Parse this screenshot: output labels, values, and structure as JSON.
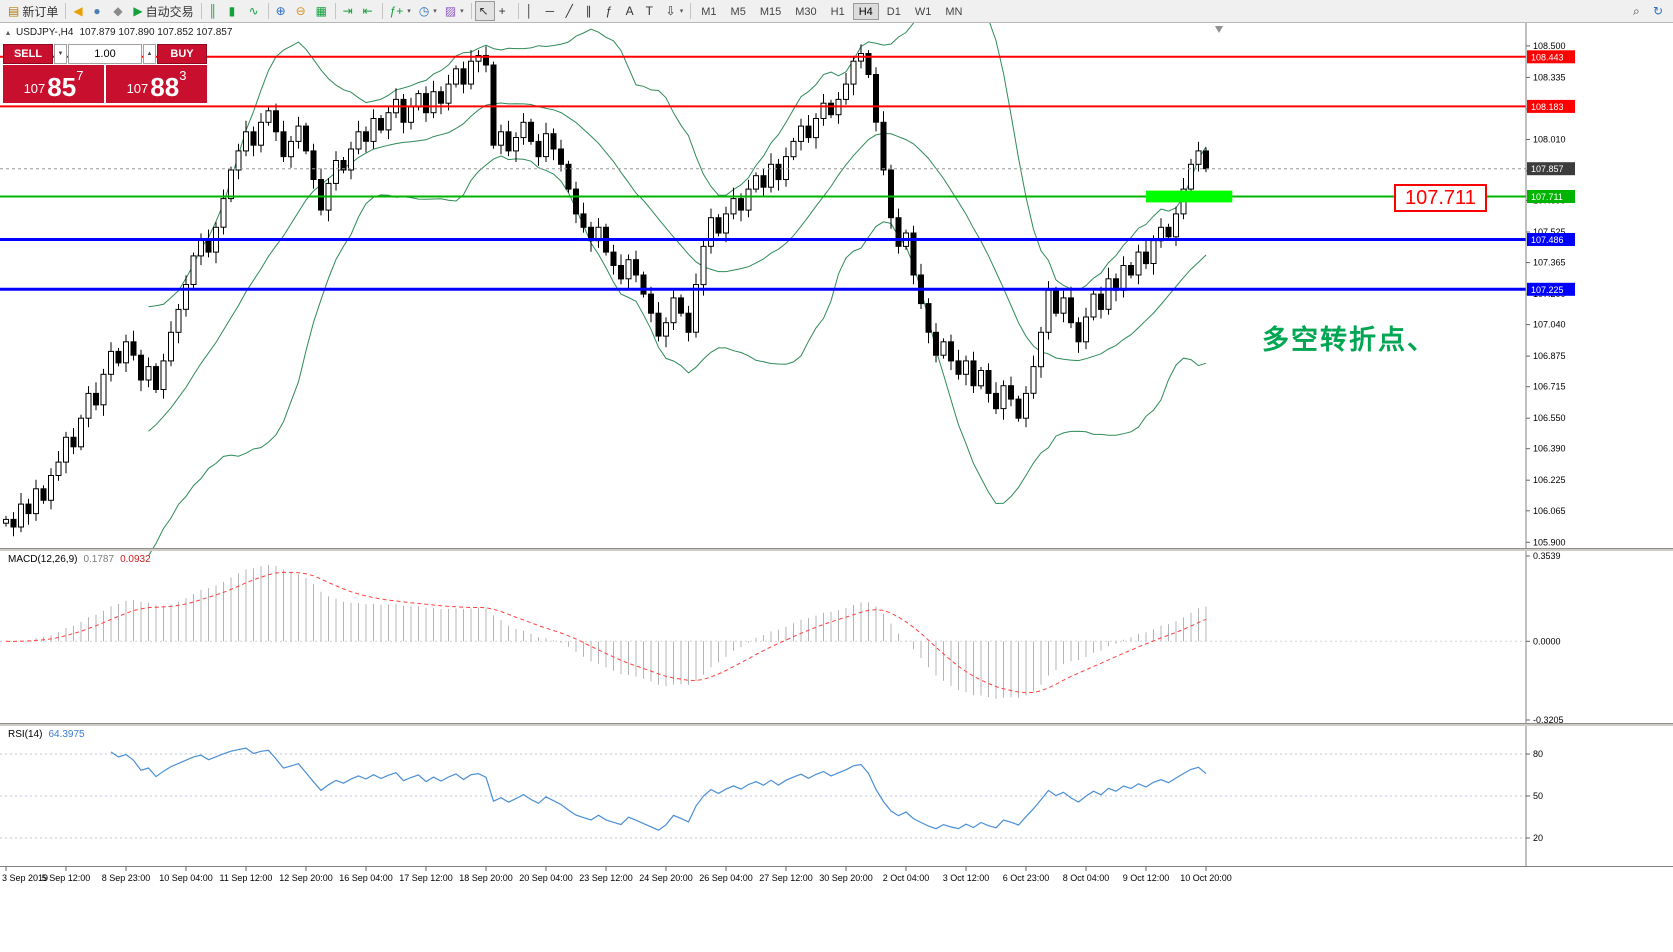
{
  "toolbar": {
    "items": [
      {
        "name": "new-order-button",
        "label": "新订单",
        "glyph": "▤",
        "glyph_color": "#b07c10"
      },
      {
        "sep": true
      },
      {
        "name": "megaphone-icon-button",
        "glyph": "◀",
        "glyph_color": "#e8a000"
      },
      {
        "name": "profile-icon-button",
        "glyph": "●",
        "glyph_color": "#4a7fb5"
      },
      {
        "name": "sound-icon-button",
        "glyph": "◆",
        "glyph_color": "#8a8a8a"
      },
      {
        "name": "auto-trading-button",
        "label": "自动交易",
        "glyph": "▶",
        "glyph_color": "#14a03c"
      },
      {
        "sep": true
      },
      {
        "name": "bar-chart-mode-button",
        "glyph": "║",
        "glyph_color": "#14a03c"
      },
      {
        "name": "candle-chart-mode-button",
        "glyph": "▮",
        "glyph_color": "#14a03c"
      },
      {
        "name": "line-chart-mode-button",
        "glyph": "∿",
        "glyph_color": "#14a03c"
      },
      {
        "sep": true
      },
      {
        "name": "zoom-in-button",
        "glyph": "⊕",
        "glyph_color": "#2a6fc0"
      },
      {
        "name": "zoom-out-button",
        "glyph": "⊖",
        "glyph_color": "#d89020"
      },
      {
        "name": "tile-windows-button",
        "glyph": "▦",
        "glyph_color": "#14a03c"
      },
      {
        "sep": true
      },
      {
        "name": "auto-scroll-button",
        "glyph": "⇥",
        "glyph_color": "#14a03c"
      },
      {
        "name": "chart-shift-button",
        "glyph": "⇤",
        "glyph_color": "#14a03c"
      },
      {
        "sep": true
      },
      {
        "name": "indicators-list-button",
        "glyph": "ƒ+",
        "glyph_color": "#14a03c",
        "dropdown": true
      },
      {
        "name": "periods-button",
        "glyph": "◷",
        "glyph_color": "#2a6fc0",
        "dropdown": true
      },
      {
        "name": "templates-button",
        "glyph": "▨",
        "glyph_color": "#8a5ac0",
        "dropdown": true
      },
      {
        "sep": true
      },
      {
        "name": "cursor-tool-button",
        "glyph": "↖",
        "glyph_color": "#333333",
        "active": true
      },
      {
        "name": "crosshair-tool-button",
        "glyph": "+",
        "glyph_color": "#333333"
      },
      {
        "sep": true
      },
      {
        "name": "vertical-line-tool-button",
        "glyph": "│",
        "glyph_color": "#333333"
      },
      {
        "name": "horizontal-line-tool-button",
        "glyph": "─",
        "glyph_color": "#333333"
      },
      {
        "name": "trendline-tool-button",
        "glyph": "╱",
        "glyph_color": "#333333"
      },
      {
        "name": "channel-tool-button",
        "glyph": "∥",
        "glyph_color": "#333333"
      },
      {
        "name": "fibonacci-tool-button",
        "glyph": "ƒ",
        "glyph_color": "#333333"
      },
      {
        "name": "text-tool-button",
        "glyph": "A",
        "glyph_color": "#333333"
      },
      {
        "name": "text-label-tool-button",
        "glyph": "T",
        "glyph_color": "#333333"
      },
      {
        "name": "arrows-tool-button",
        "glyph": "⇩",
        "glyph_color": "#333333",
        "dropdown": true
      },
      {
        "sep": true
      }
    ],
    "timeframes": [
      "M1",
      "M5",
      "M15",
      "M30",
      "H1",
      "H4",
      "D1",
      "W1",
      "MN"
    ],
    "active_timeframe": "H4",
    "right_items": [
      {
        "name": "search-icon-button",
        "glyph": "⌕",
        "glyph_color": "#444444"
      },
      {
        "name": "community-icon-button",
        "glyph": "↻",
        "glyph_color": "#2a6fc0"
      }
    ]
  },
  "chart_header": {
    "collapse_glyph": "▴",
    "symbol": "USDJPY-,H4",
    "ohlc": "107.879 107.890 107.852 107.857"
  },
  "trade_panel": {
    "sell_label": "SELL",
    "buy_label": "BUY",
    "volume": "1.00",
    "spinner_down_glyph": "▼",
    "spinner_up_glyph": "▲",
    "sell_price_main": "107",
    "sell_price_big": "85",
    "sell_price_sup": "7",
    "buy_price_main": "107",
    "buy_price_big": "88",
    "buy_price_sup": "3",
    "panel_color": "#c80f2e"
  },
  "indicators": {
    "macd_label": "MACD(12,26,9)",
    "macd_value_main": "0.1787",
    "macd_value_signal": "0.0932",
    "rsi_label": "RSI(14)",
    "rsi_value": "64.3975"
  },
  "annotation": {
    "text": "多空转折点、",
    "color": "#00a651"
  },
  "price_label_box": {
    "text": "107.711",
    "color": "#ff0000"
  },
  "axes": {
    "price_ticks": [
      "108.500",
      "108.335",
      "108.170",
      "108.010",
      "107.845",
      "107.690",
      "107.525",
      "107.365",
      "107.200",
      "107.040",
      "106.875",
      "106.715",
      "106.550",
      "106.390",
      "106.225",
      "106.065",
      "105.900"
    ],
    "price_badges": [
      {
        "text": "108.443",
        "bg": "#ff0000",
        "fg": "#ffffff"
      },
      {
        "text": "108.183",
        "bg": "#ff0000",
        "fg": "#ffffff"
      },
      {
        "text": "107.857",
        "bg": "#3c3c3c",
        "fg": "#ffffff"
      },
      {
        "text": "107.711",
        "bg": "#00b400",
        "fg": "#ffffff"
      },
      {
        "text": "107.486",
        "bg": "#0000ff",
        "fg": "#ffffff"
      },
      {
        "text": "107.225",
        "bg": "#0000ff",
        "fg": "#ffffff"
      }
    ],
    "macd_ticks": [
      "0.3539",
      "0.0000",
      "-0.3205"
    ],
    "rsi_ticks": [
      "80",
      "50",
      "20"
    ],
    "time_labels": [
      "3 Sep 2019",
      "5 Sep 12:00",
      "8 Sep 23:00",
      "10 Sep 04:00",
      "11 Sep 12:00",
      "12 Sep 20:00",
      "16 Sep 04:00",
      "17 Sep 12:00",
      "18 Sep 20:00",
      "20 Sep 04:00",
      "23 Sep 12:00",
      "24 Sep 20:00",
      "26 Sep 04:00",
      "27 Sep 12:00",
      "30 Sep 20:00",
      "2 Oct 04:00",
      "3 Oct 12:00",
      "6 Oct 23:00",
      "8 Oct 04:00",
      "9 Oct 12:00",
      "10 Oct 20:00"
    ]
  },
  "chart_data": {
    "type": "candlestick",
    "symbol": "USDJPY",
    "period": "H4",
    "ylim": [
      105.87,
      108.62
    ],
    "bars": 161,
    "closes": [
      106.02,
      105.98,
      106.1,
      106.05,
      106.18,
      106.12,
      106.25,
      106.32,
      106.45,
      106.4,
      106.55,
      106.68,
      106.62,
      106.78,
      106.9,
      106.84,
      106.95,
      106.88,
      106.75,
      106.82,
      106.7,
      106.85,
      107.0,
      107.12,
      107.25,
      107.4,
      107.48,
      107.42,
      107.55,
      107.7,
      107.85,
      107.95,
      108.05,
      107.98,
      108.1,
      108.16,
      108.05,
      107.92,
      108.0,
      108.08,
      107.95,
      107.8,
      107.64,
      107.78,
      107.9,
      107.85,
      107.96,
      108.05,
      108.0,
      108.12,
      108.06,
      108.15,
      108.22,
      108.1,
      108.18,
      108.25,
      108.15,
      108.26,
      108.2,
      108.3,
      108.38,
      108.3,
      108.42,
      108.45,
      108.4,
      107.98,
      108.05,
      107.95,
      108.02,
      108.1,
      108.0,
      107.92,
      108.04,
      107.96,
      107.88,
      107.75,
      107.62,
      107.55,
      107.48,
      107.55,
      107.42,
      107.35,
      107.28,
      107.38,
      107.3,
      107.2,
      107.1,
      106.98,
      107.05,
      107.18,
      107.1,
      107.0,
      107.25,
      107.45,
      107.6,
      107.52,
      107.62,
      107.7,
      107.64,
      107.75,
      107.82,
      107.76,
      107.88,
      107.8,
      107.92,
      108.0,
      108.08,
      108.02,
      108.12,
      108.2,
      108.14,
      108.22,
      108.3,
      108.42,
      108.46,
      108.35,
      108.1,
      107.85,
      107.6,
      107.45,
      107.52,
      107.3,
      107.15,
      107.0,
      106.88,
      106.95,
      106.85,
      106.78,
      106.85,
      106.72,
      106.8,
      106.68,
      106.6,
      106.72,
      106.65,
      106.55,
      106.68,
      106.82,
      107.0,
      107.22,
      107.1,
      107.18,
      107.05,
      106.95,
      107.08,
      107.2,
      107.12,
      107.28,
      107.22,
      107.35,
      107.3,
      107.42,
      107.36,
      107.48,
      107.55,
      107.5,
      107.62,
      107.75,
      107.88,
      107.95,
      107.857
    ],
    "bollinger": {
      "period": 20,
      "deviation": 2,
      "color": "#2e8b57"
    },
    "hlines": [
      {
        "price": 108.443,
        "color": "#ff0000",
        "width": 2,
        "dashed": false
      },
      {
        "price": 108.183,
        "color": "#ff0000",
        "width": 2,
        "dashed": false
      },
      {
        "price": 107.711,
        "color": "#00b400",
        "width": 2,
        "dashed": false
      },
      {
        "price": 107.486,
        "color": "#0000ff",
        "width": 3,
        "dashed": false
      },
      {
        "price": 107.225,
        "color": "#0000ff",
        "width": 3,
        "dashed": false
      },
      {
        "price": 107.857,
        "color": "#999999",
        "width": 1,
        "dashed": true
      }
    ],
    "highlight_rect": {
      "bar_start": 152,
      "bar_end": 163.5,
      "price_top": 107.742,
      "price_bottom": 107.68,
      "color": "#00ff00"
    },
    "macd": {
      "fast": 12,
      "slow": 26,
      "signal": 9,
      "ylim": [
        -0.3205,
        0.3539
      ],
      "hist_color": "#b4b4b4",
      "signal_color": "#ff4040"
    },
    "rsi": {
      "period": 14,
      "levels": [
        80,
        50,
        20
      ],
      "color": "#4a8fd4",
      "ylim": [
        0,
        100
      ],
      "current": 64.3975
    }
  }
}
